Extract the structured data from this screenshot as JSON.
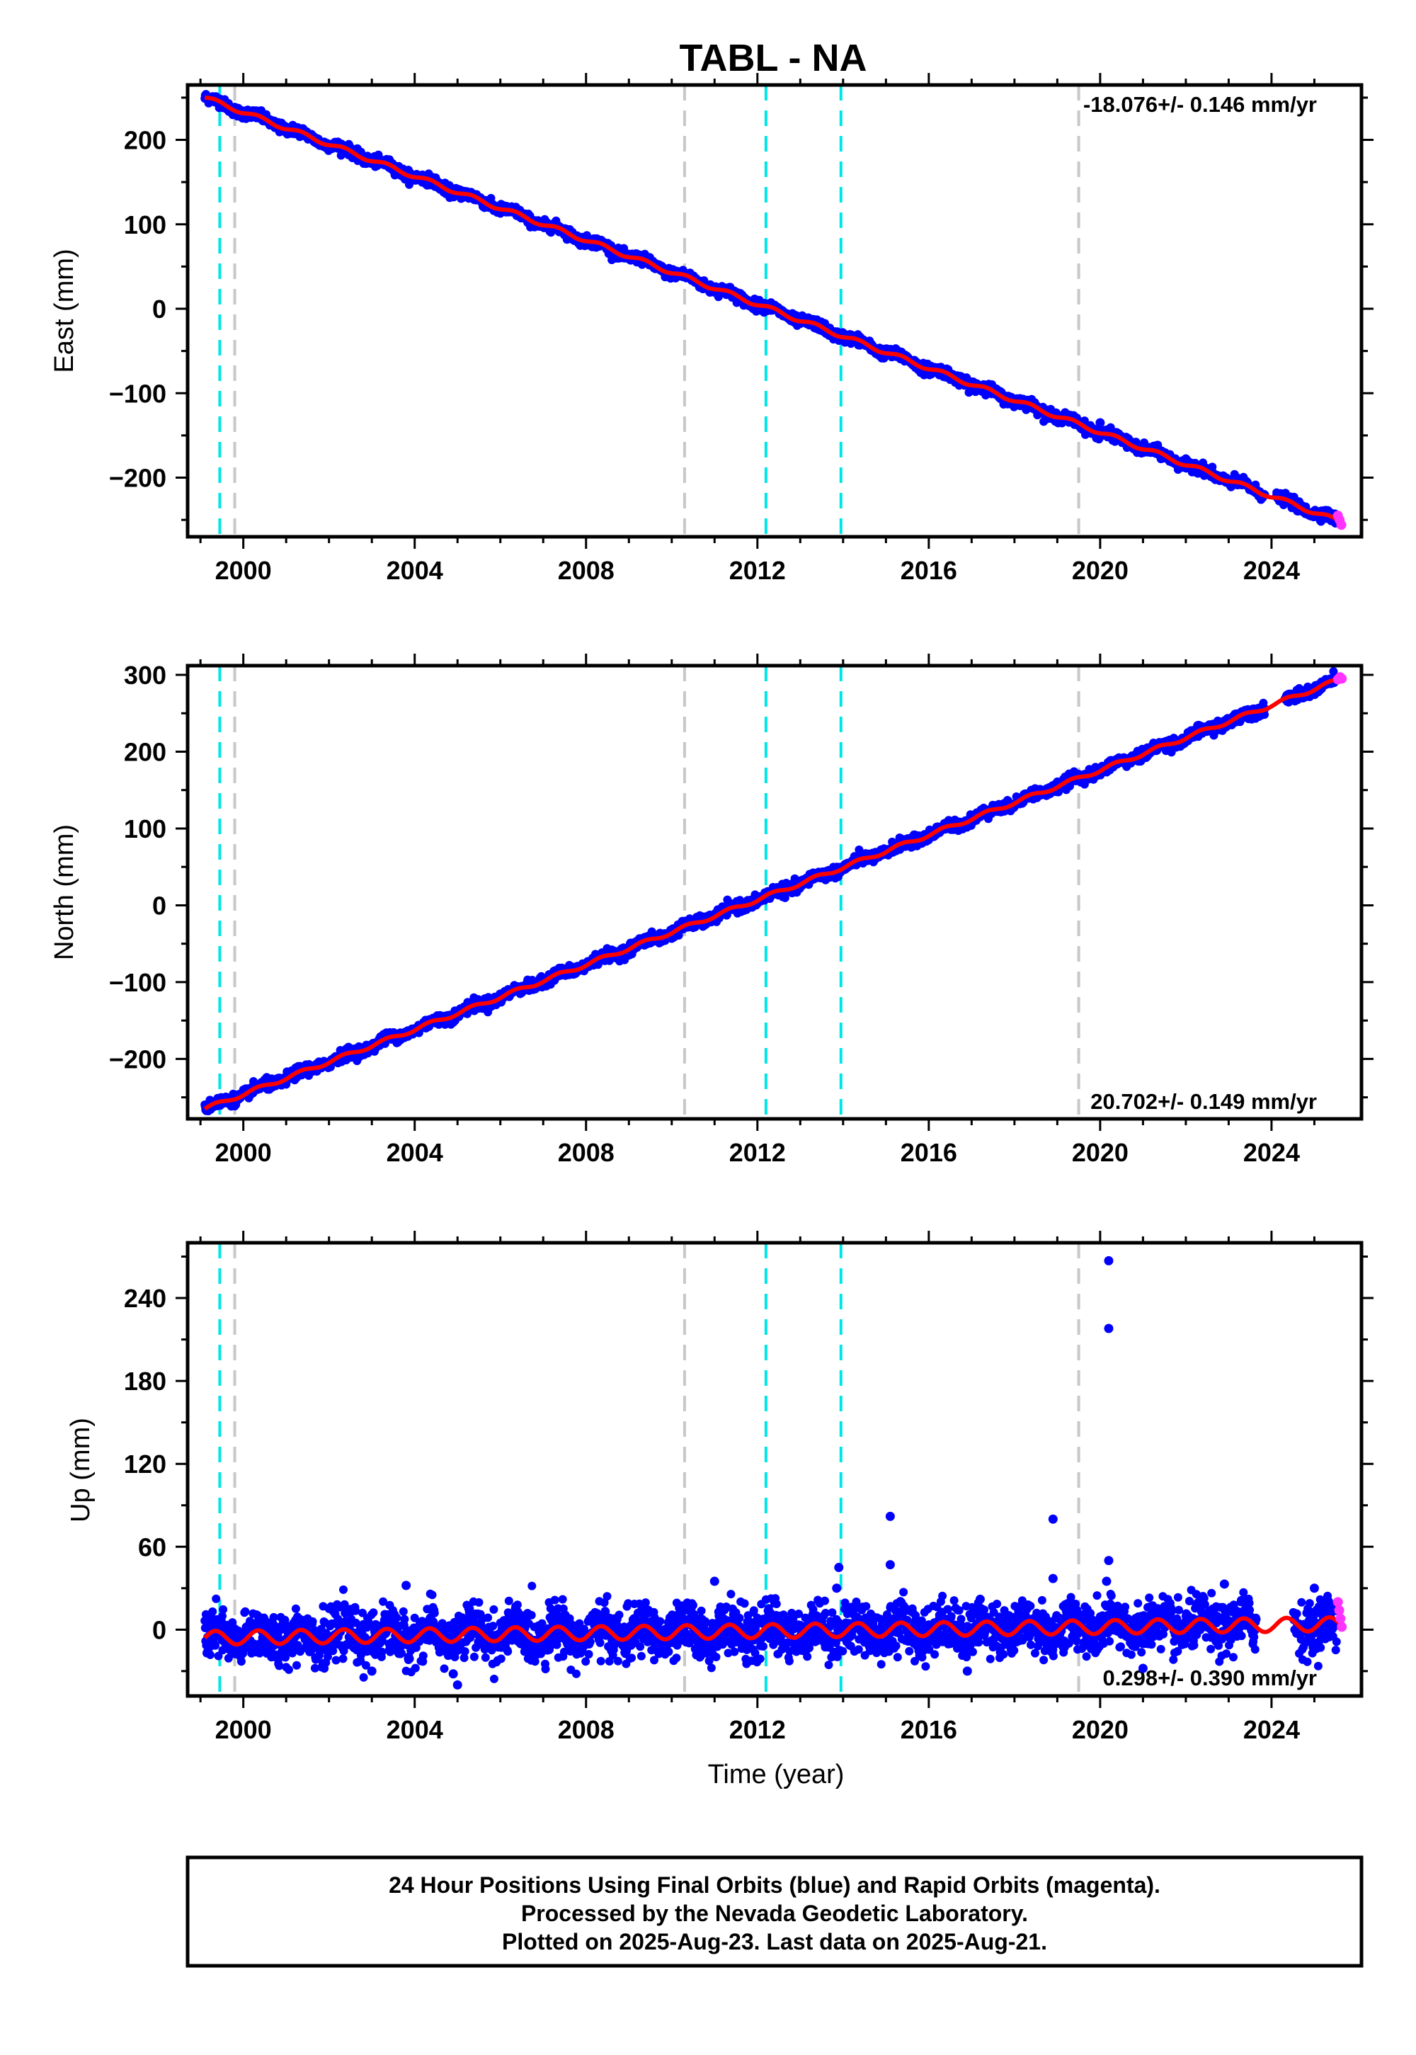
{
  "figure": {
    "title": "TABL - NA",
    "xlabel": "Time (year)",
    "footer": [
      "24 Hour Positions Using Final Orbits (blue) and Rapid Orbits (magenta).",
      "Processed by the Nevada Geodetic Laboratory.",
      "Plotted on 2025-Aug-23. Last data on 2025-Aug-21."
    ]
  },
  "chart_data": [
    {
      "type": "scatter",
      "ylabel": "East (mm)",
      "rate_label": "-18.076+/- 0.146 mm/yr",
      "rate_position": "top-right",
      "xlim": [
        1998.7,
        2026.1
      ],
      "ylim": [
        -270,
        265
      ],
      "x_ticks": [
        2000,
        2004,
        2008,
        2012,
        2016,
        2020,
        2024
      ],
      "y_ticks": [
        -200,
        -100,
        0,
        100,
        200
      ],
      "y_tick_labels": [
        "−200",
        "−100",
        "0",
        "100",
        "200"
      ],
      "trend": {
        "start_year": 1999.1,
        "end_year": 2025.64,
        "start_value": 250,
        "end_value": -253,
        "annual_amplitude": 2.5
      },
      "scatter_noise_mm": 3,
      "outliers": [
        {
          "x": 2020.0,
          "y": -135
        }
      ],
      "gaps": [
        [
          2023.85,
          2024.1
        ]
      ],
      "rapid_points": [
        {
          "x": 2025.55,
          "y": -245
        },
        {
          "x": 2025.59,
          "y": -250
        },
        {
          "x": 2025.63,
          "y": -256
        }
      ],
      "gray_lines": [
        1999.8,
        2010.3,
        2019.5
      ],
      "cyan_lines": [
        1999.45,
        2012.2,
        2013.95
      ]
    },
    {
      "type": "scatter",
      "ylabel": "North (mm)",
      "rate_label": "20.702+/- 0.149 mm/yr",
      "rate_position": "bottom-right",
      "xlim": [
        1998.7,
        2026.1
      ],
      "ylim": [
        -278,
        312
      ],
      "x_ticks": [
        2000,
        2004,
        2008,
        2012,
        2016,
        2020,
        2024
      ],
      "y_ticks": [
        -200,
        -100,
        0,
        100,
        200,
        300
      ],
      "y_tick_labels": [
        "−200",
        "−100",
        "0",
        "100",
        "200",
        "300"
      ],
      "trend": {
        "start_year": 1999.1,
        "end_year": 2025.64,
        "start_value": -265,
        "end_value": 295,
        "annual_amplitude": 2.5
      },
      "scatter_noise_mm": 3.5,
      "outliers": [],
      "gaps": [
        [
          2023.85,
          2024.3
        ]
      ],
      "rapid_points": [
        {
          "x": 2025.55,
          "y": 294
        },
        {
          "x": 2025.6,
          "y": 297
        },
        {
          "x": 2025.64,
          "y": 295
        }
      ],
      "gray_lines": [
        1999.8,
        2010.3,
        2019.5
      ],
      "cyan_lines": [
        1999.45,
        2012.2,
        2013.95
      ]
    },
    {
      "type": "scatter",
      "ylabel": "Up (mm)",
      "rate_label": "0.298+/- 0.390 mm/yr",
      "rate_position": "bottom-right",
      "xlim": [
        1998.7,
        2026.1
      ],
      "ylim": [
        -48,
        280
      ],
      "x_ticks": [
        2000,
        2004,
        2008,
        2012,
        2016,
        2020,
        2024
      ],
      "y_ticks": [
        0,
        60,
        120,
        180,
        240
      ],
      "y_tick_labels": [
        "0",
        "60",
        "120",
        "180",
        "240"
      ],
      "trend": {
        "start_year": 1999.1,
        "end_year": 2025.64,
        "start_value": -6,
        "end_value": 4,
        "annual_amplitude": 5
      },
      "scatter_noise_mm": 9,
      "outliers": [
        {
          "x": 2020.2,
          "y": 267
        },
        {
          "x": 2020.2,
          "y": 218
        },
        {
          "x": 2020.2,
          "y": 50
        },
        {
          "x": 2020.15,
          "y": 35
        },
        {
          "x": 2015.1,
          "y": 82
        },
        {
          "x": 2015.1,
          "y": 47
        },
        {
          "x": 2018.9,
          "y": 80
        },
        {
          "x": 2018.9,
          "y": 37
        },
        {
          "x": 2013.9,
          "y": 45
        },
        {
          "x": 2013.85,
          "y": 30
        },
        {
          "x": 2011.0,
          "y": 35
        },
        {
          "x": 2003.8,
          "y": 32
        },
        {
          "x": 2005.0,
          "y": -40
        },
        {
          "x": 2003.0,
          "y": -30
        },
        {
          "x": 2004.9,
          "y": -32
        },
        {
          "x": 2016.9,
          "y": -30
        },
        {
          "x": 2021.0,
          "y": -28
        },
        {
          "x": 2022.9,
          "y": 33
        },
        {
          "x": 2025.0,
          "y": 30
        },
        {
          "x": 2017.2,
          "y": 22
        }
      ],
      "gaps": [
        [
          2023.65,
          2024.5
        ]
      ],
      "rapid_points": [
        {
          "x": 2025.55,
          "y": 20
        },
        {
          "x": 2025.58,
          "y": 14
        },
        {
          "x": 2025.61,
          "y": 8
        },
        {
          "x": 2025.64,
          "y": 2
        }
      ],
      "gray_lines": [
        1999.8,
        2010.3,
        2019.5
      ],
      "cyan_lines": [
        1999.45,
        2012.2,
        2013.95
      ]
    }
  ],
  "colors": {
    "final_orbits": "#0000ff",
    "rapid_orbits": "#ff33ff",
    "model": "#ff0000",
    "gray_line": "#c8c8c8",
    "cyan_line": "#00e6e6",
    "frame": "#000000"
  }
}
